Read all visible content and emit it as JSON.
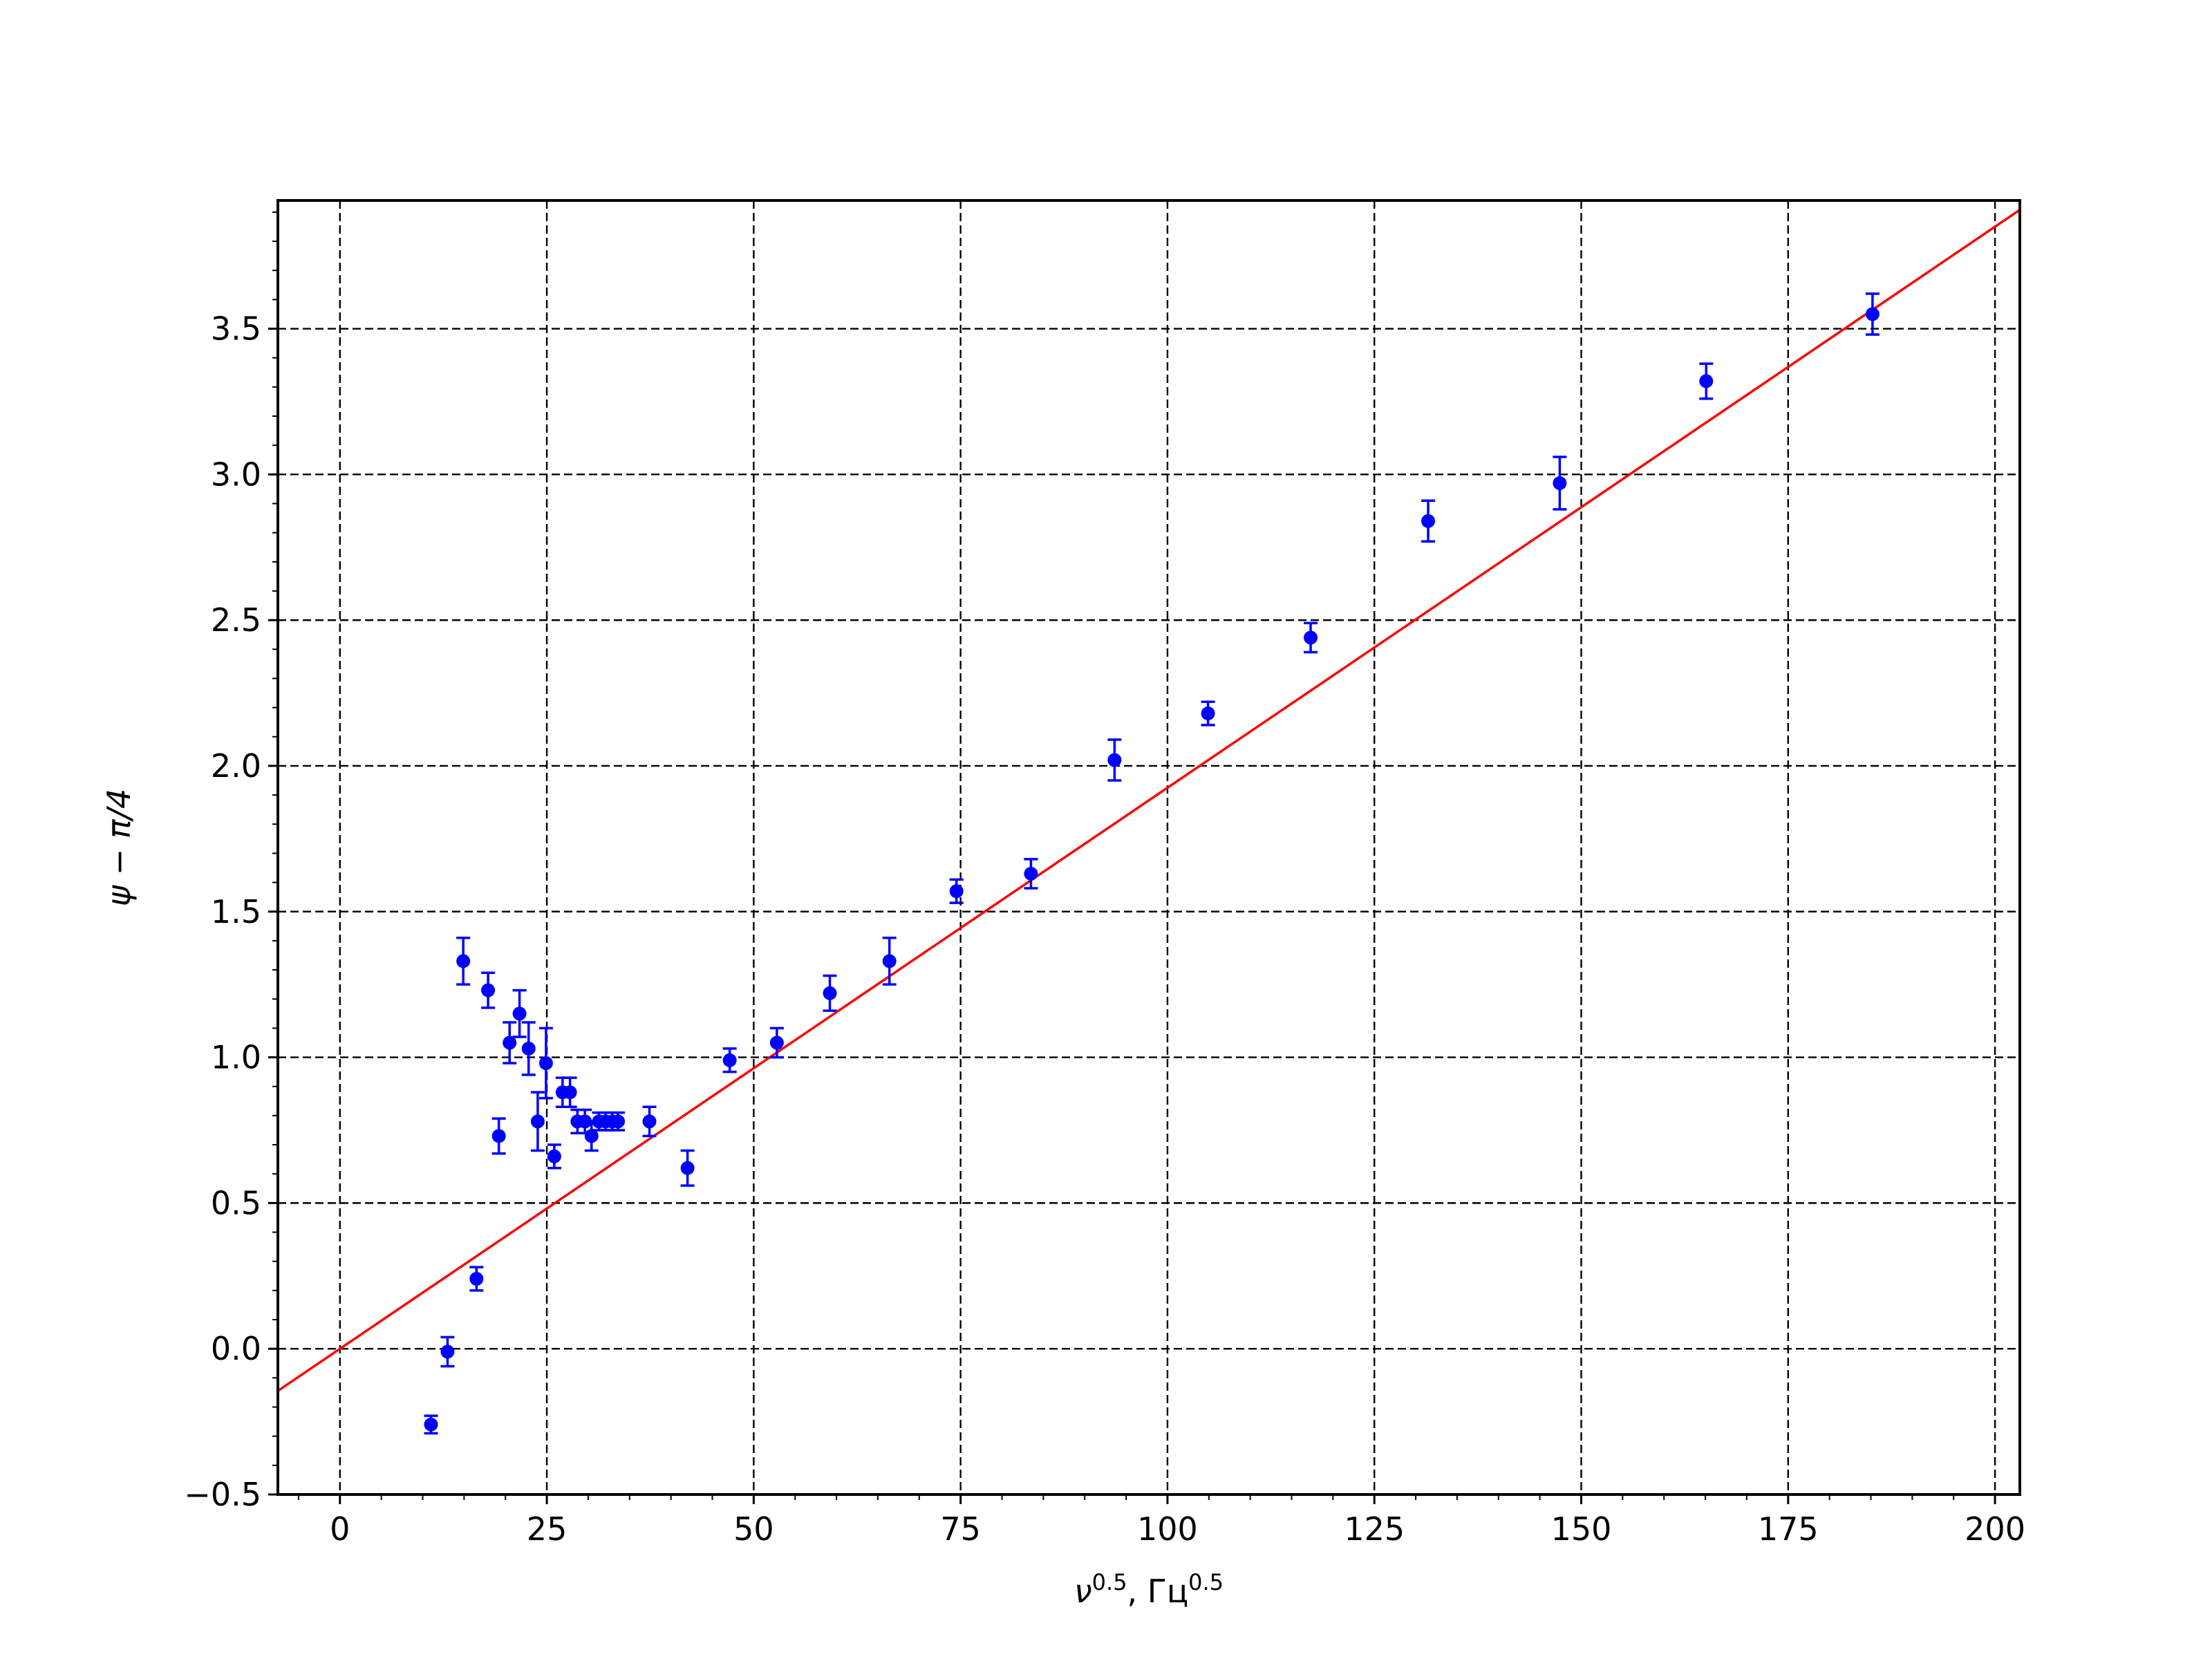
{
  "chart_data": {
    "type": "scatter",
    "xlabel": {
      "base": "ν",
      "base_sup": "0.5",
      "unit": ", Гц",
      "unit_sup": "0.5"
    },
    "ylabel": "ψ − π/4",
    "xlim": [
      -7.5,
      203
    ],
    "ylim": [
      -0.5,
      3.94
    ],
    "xticks": [
      0,
      25,
      50,
      75,
      100,
      125,
      150,
      175,
      200
    ],
    "yticks": [
      -0.5,
      0.0,
      0.5,
      1.0,
      1.5,
      2.0,
      2.5,
      3.0,
      3.5
    ],
    "xtick_labels": [
      "0",
      "25",
      "50",
      "75",
      "100",
      "125",
      "150",
      "175",
      "200"
    ],
    "ytick_labels": [
      "−0.5",
      "0.0",
      "0.5",
      "1.0",
      "1.5",
      "2.0",
      "2.5",
      "3.0",
      "3.5"
    ],
    "grid": true,
    "grid_style": "dashed",
    "colors": {
      "points": "#0000ff",
      "fit_line": "#ff0000",
      "grid": "#000000"
    },
    "series": [
      {
        "kind": "errorbar",
        "points": [
          {
            "x": 11.0,
            "y": -0.26,
            "err": 0.03
          },
          {
            "x": 13.0,
            "y": -0.01,
            "err": 0.05
          },
          {
            "x": 14.9,
            "y": 1.33,
            "err": 0.08
          },
          {
            "x": 16.5,
            "y": 0.24,
            "err": 0.04
          },
          {
            "x": 17.9,
            "y": 1.23,
            "err": 0.06
          },
          {
            "x": 19.2,
            "y": 0.73,
            "err": 0.06
          },
          {
            "x": 20.5,
            "y": 1.05,
            "err": 0.07
          },
          {
            "x": 21.7,
            "y": 1.15,
            "err": 0.08
          },
          {
            "x": 22.8,
            "y": 1.03,
            "err": 0.09
          },
          {
            "x": 23.9,
            "y": 0.78,
            "err": 0.1
          },
          {
            "x": 24.9,
            "y": 0.98,
            "err": 0.12
          },
          {
            "x": 25.9,
            "y": 0.66,
            "err": 0.04
          },
          {
            "x": 26.9,
            "y": 0.88,
            "err": 0.05
          },
          {
            "x": 27.8,
            "y": 0.88,
            "err": 0.05
          },
          {
            "x": 28.7,
            "y": 0.78,
            "err": 0.04
          },
          {
            "x": 29.6,
            "y": 0.78,
            "err": 0.04
          },
          {
            "x": 30.4,
            "y": 0.73,
            "err": 0.05
          },
          {
            "x": 31.3,
            "y": 0.78,
            "err": 0.03
          },
          {
            "x": 32.1,
            "y": 0.78,
            "err": 0.03
          },
          {
            "x": 32.9,
            "y": 0.78,
            "err": 0.03
          },
          {
            "x": 33.6,
            "y": 0.78,
            "err": 0.03
          },
          {
            "x": 37.4,
            "y": 0.78,
            "err": 0.05
          },
          {
            "x": 42.0,
            "y": 0.62,
            "err": 0.06
          },
          {
            "x": 47.1,
            "y": 0.99,
            "err": 0.04
          },
          {
            "x": 52.8,
            "y": 1.05,
            "err": 0.05
          },
          {
            "x": 59.2,
            "y": 1.22,
            "err": 0.06
          },
          {
            "x": 66.4,
            "y": 1.33,
            "err": 0.08
          },
          {
            "x": 74.5,
            "y": 1.57,
            "err": 0.04
          },
          {
            "x": 83.5,
            "y": 1.63,
            "err": 0.05
          },
          {
            "x": 93.6,
            "y": 2.02,
            "err": 0.07
          },
          {
            "x": 104.9,
            "y": 2.18,
            "err": 0.04
          },
          {
            "x": 117.3,
            "y": 2.44,
            "err": 0.05
          },
          {
            "x": 131.5,
            "y": 2.84,
            "err": 0.07
          },
          {
            "x": 147.4,
            "y": 2.97,
            "err": 0.09
          },
          {
            "x": 165.1,
            "y": 3.32,
            "err": 0.06
          },
          {
            "x": 185.2,
            "y": 3.55,
            "err": 0.07
          }
        ]
      },
      {
        "kind": "line",
        "slope": 0.01925,
        "intercept": 0.0,
        "x_range": [
          -7.5,
          203
        ]
      }
    ]
  }
}
